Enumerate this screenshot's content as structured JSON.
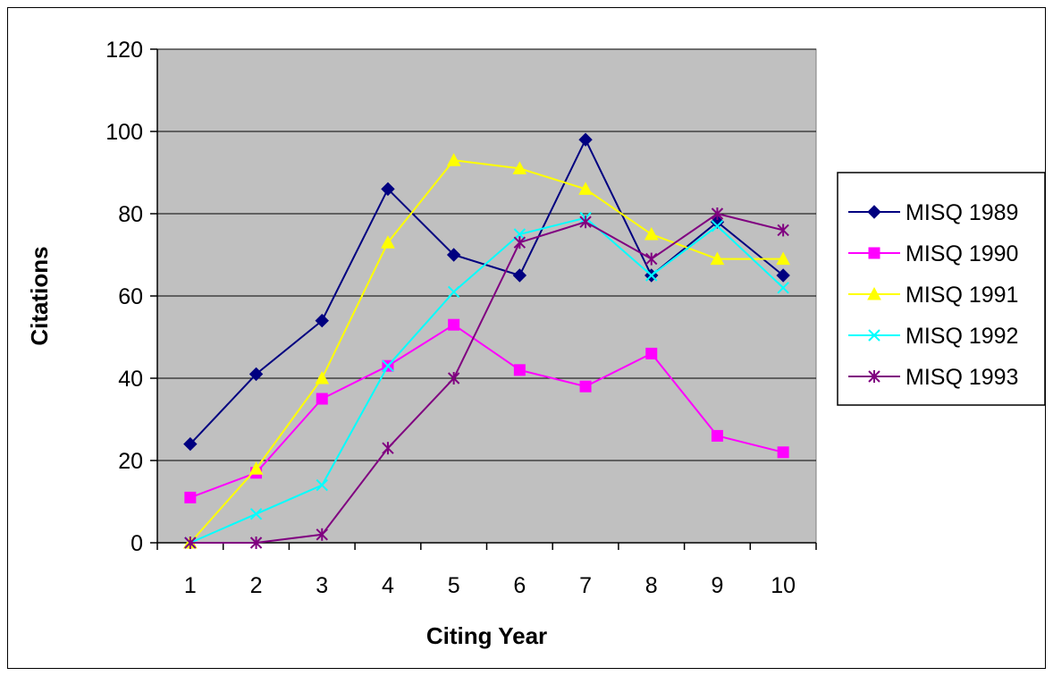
{
  "chart_data": {
    "type": "line",
    "title": "",
    "xlabel": "Citing Year",
    "ylabel": "Citations",
    "x": [
      1,
      2,
      3,
      4,
      5,
      6,
      7,
      8,
      9,
      10
    ],
    "x_tick_labels": [
      "1",
      "2",
      "3",
      "4",
      "5",
      "6",
      "7",
      "8",
      "9",
      "10"
    ],
    "ylim": [
      0,
      120
    ],
    "y_ticks": [
      0,
      20,
      40,
      60,
      80,
      100,
      120
    ],
    "y_tick_labels": [
      "0",
      "20",
      "40",
      "60",
      "80",
      "100",
      "120"
    ],
    "grid": "horizontal",
    "plot_background": "#c0c0c0",
    "legend_position": "right",
    "series": [
      {
        "name": "MISQ 1989",
        "color": "#000080",
        "marker": "diamond",
        "values": [
          24,
          41,
          54,
          86,
          70,
          65,
          98,
          65,
          78,
          65
        ]
      },
      {
        "name": "MISQ 1990",
        "color": "#ff00ff",
        "marker": "square",
        "values": [
          11,
          17,
          35,
          43,
          53,
          42,
          38,
          46,
          26,
          22
        ]
      },
      {
        "name": "MISQ 1991",
        "color": "#ffff00",
        "marker": "triangle",
        "values": [
          0,
          18,
          40,
          73,
          93,
          91,
          86,
          75,
          69,
          69
        ]
      },
      {
        "name": "MISQ 1992",
        "color": "#00ffff",
        "marker": "x",
        "values": [
          0,
          7,
          14,
          43,
          61,
          75,
          79,
          65,
          77,
          62
        ]
      },
      {
        "name": "MISQ 1993",
        "color": "#800080",
        "marker": "star",
        "values": [
          0,
          0,
          2,
          23,
          40,
          73,
          78,
          69,
          80,
          76
        ]
      }
    ]
  }
}
